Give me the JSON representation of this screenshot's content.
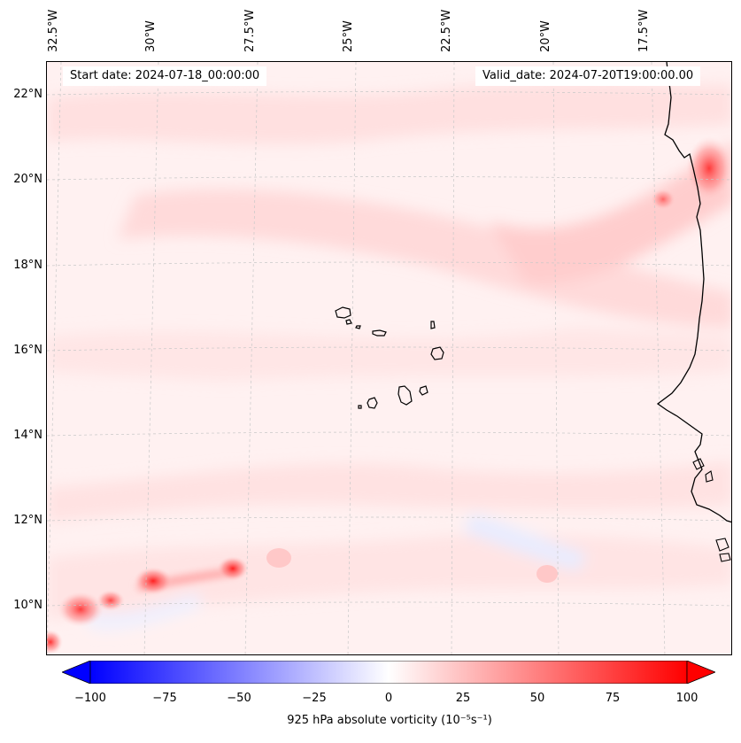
{
  "map": {
    "start_date": "Start date: 2024-07-18_00:00:00",
    "valid_date": "Valid_date: 2024-07-20T19:00:00.00",
    "lon_labels": [
      "32.5°W",
      "30°W",
      "27.5°W",
      "25°W",
      "22.5°W",
      "20°W",
      "17.5°W"
    ],
    "lat_labels": [
      "22°N",
      "20°N",
      "18°N",
      "16°N",
      "14°N",
      "12°N",
      "10°N"
    ],
    "region": "Cape Verde / West Africa coast",
    "colormap": "bwr"
  },
  "colorbar": {
    "label": "925 hPa absolute vorticity (10⁻⁵s⁻¹)",
    "ticks": [
      "−100",
      "−75",
      "−50",
      "−25",
      "0",
      "25",
      "50",
      "75",
      "100"
    ],
    "min": -100,
    "max": 100,
    "low_color": "#0000ff",
    "mid_color": "#ffffff",
    "high_color": "#ff0000"
  }
}
